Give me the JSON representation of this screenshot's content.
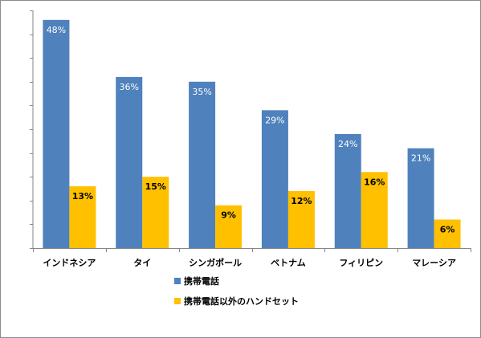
{
  "chart_data": {
    "type": "bar",
    "categories": [
      "インドネシア",
      "タイ",
      "シンガポール",
      "ベトナム",
      "フィリピン",
      "マレーシア"
    ],
    "series": [
      {
        "name": "携帯電話",
        "values": [
          48,
          36,
          35,
          29,
          24,
          21
        ],
        "color": "#4f81bd"
      },
      {
        "name": "携帯電話以外のハンドセット",
        "values": [
          13,
          15,
          9,
          12,
          16,
          6
        ],
        "color": "#ffc000"
      }
    ],
    "value_suffix": "%",
    "ylim": [
      0,
      50
    ],
    "ytick_step": 5,
    "grid": false,
    "legend_position": "bottom-center"
  }
}
